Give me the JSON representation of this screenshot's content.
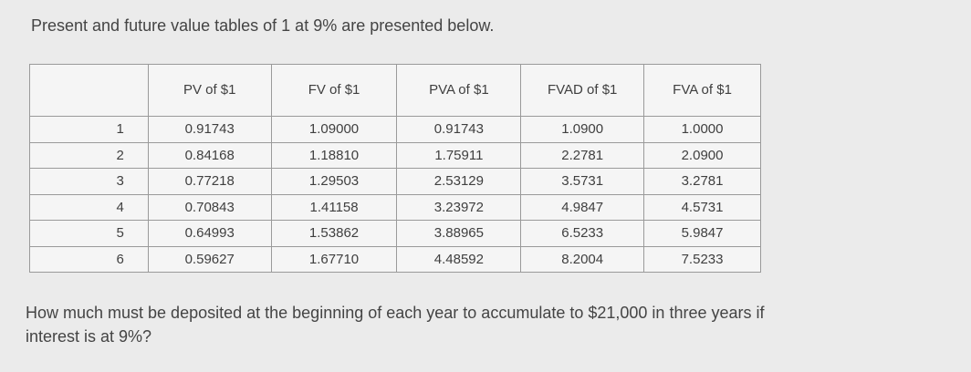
{
  "intro_text": "Present and future value tables of 1 at 9% are presented below.",
  "table": {
    "headers": [
      "",
      "PV of $1",
      "FV of $1",
      "PVA of $1",
      "FVAD of $1",
      "FVA of $1"
    ],
    "rows": [
      [
        "1",
        "0.91743",
        "1.09000",
        "0.91743",
        "1.0900",
        "1.0000"
      ],
      [
        "2",
        "0.84168",
        "1.18810",
        "1.75911",
        "2.2781",
        "2.0900"
      ],
      [
        "3",
        "0.77218",
        "1.29503",
        "2.53129",
        "3.5731",
        "3.2781"
      ],
      [
        "4",
        "0.70843",
        "1.41158",
        "3.23972",
        "4.9847",
        "4.5731"
      ],
      [
        "5",
        "0.64993",
        "1.53862",
        "3.88965",
        "6.5233",
        "5.9847"
      ],
      [
        "6",
        "0.59627",
        "1.67710",
        "4.48592",
        "8.2004",
        "7.5233"
      ]
    ]
  },
  "question_text": "How much must be deposited at the beginning of each year to accumulate to $21,000 in three years if interest is at 9%?"
}
